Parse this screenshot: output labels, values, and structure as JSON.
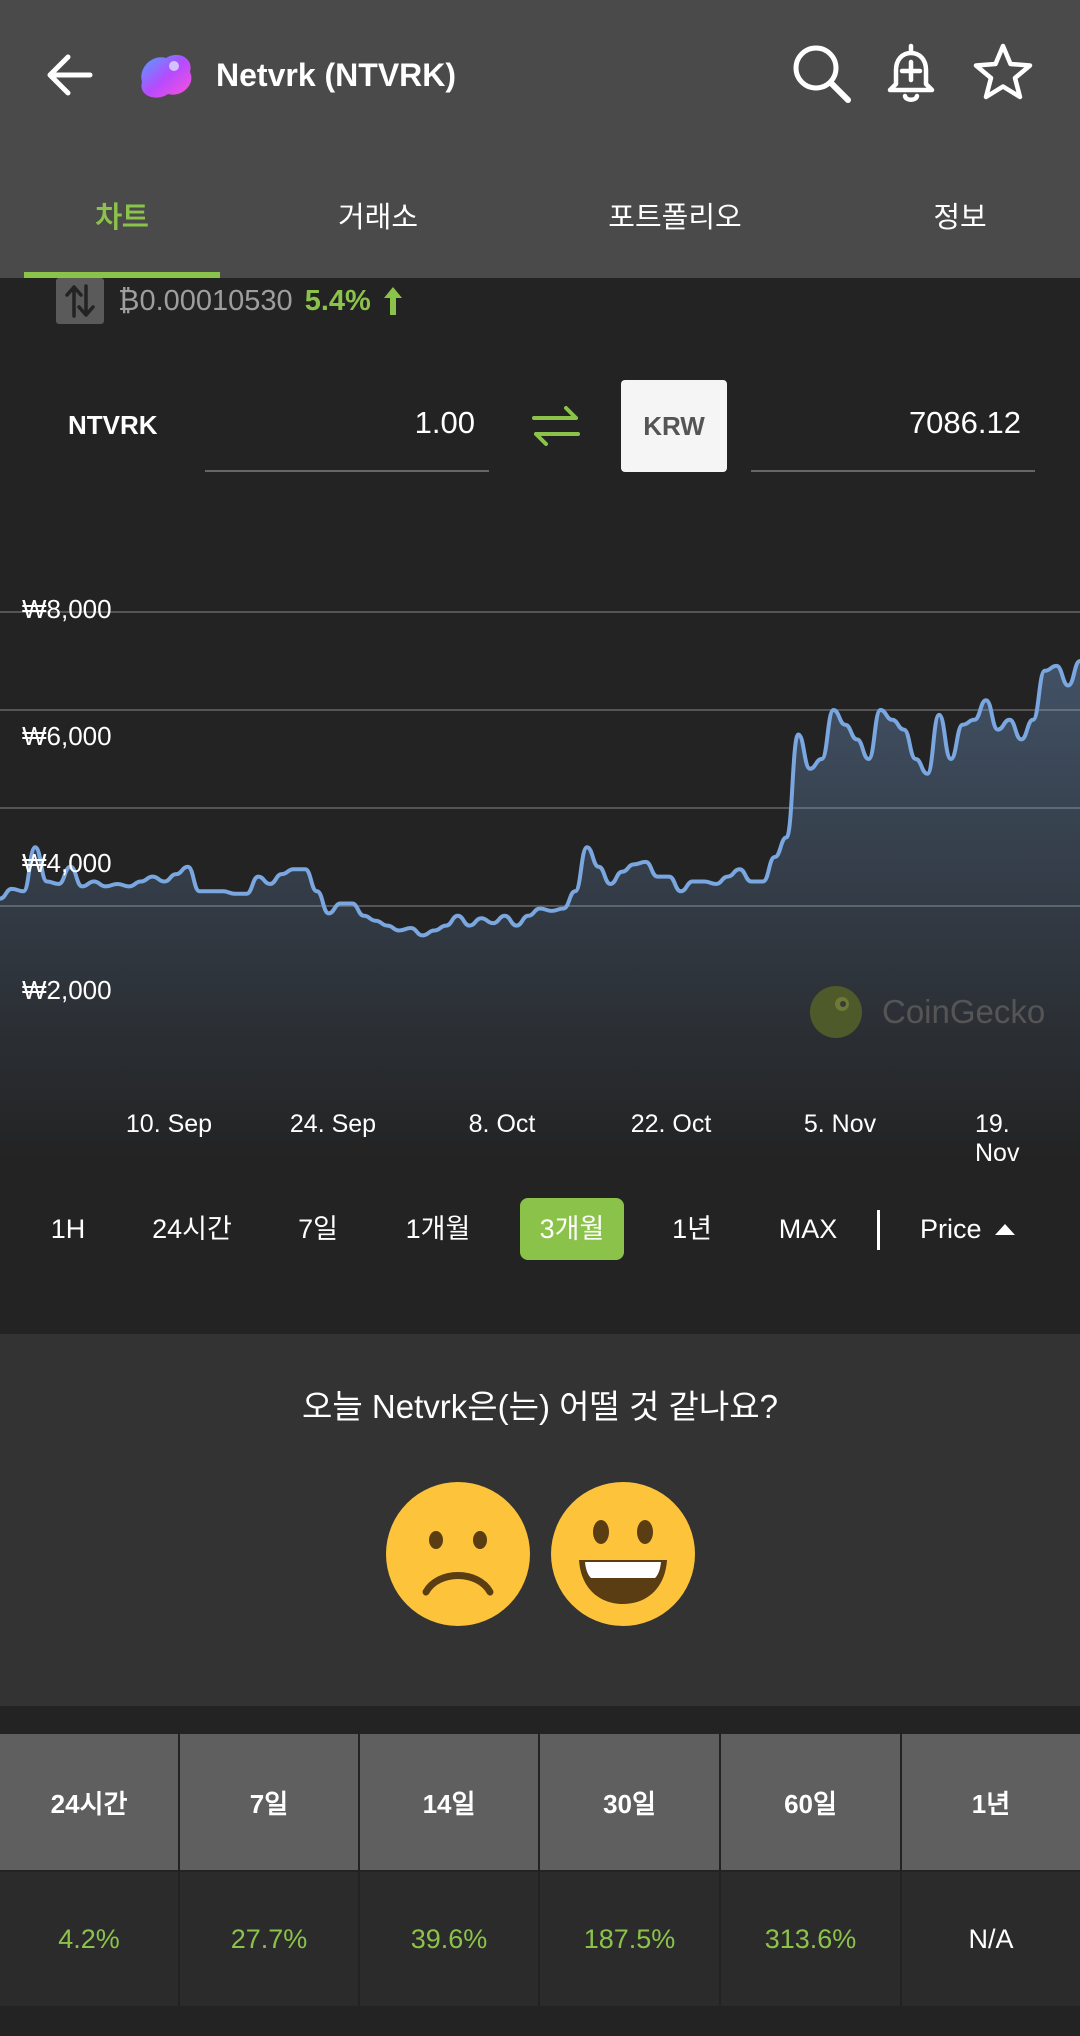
{
  "header": {
    "title": "Netvrk (NTVRK)",
    "tabs": [
      {
        "label": "차트",
        "active": true
      },
      {
        "label": "거래소"
      },
      {
        "label": "포트폴리오"
      },
      {
        "label": "정보"
      }
    ],
    "icons": [
      "back-arrow-icon",
      "search-icon",
      "add-alert-bell-icon",
      "star-icon"
    ],
    "accent_color": "#8bc34a"
  },
  "price": {
    "btc_price": "₿0.00010530",
    "change_pct": "5.4%"
  },
  "converter": {
    "from_symbol": "NTVRK",
    "from_value": "1.00",
    "to_currency": "KRW",
    "to_value": "7086.12"
  },
  "chart_data": {
    "type": "area",
    "y_ticks": [
      "₩8,000",
      "₩6,000",
      "₩4,000",
      "₩2,000"
    ],
    "ylim": [
      0,
      8000
    ],
    "x_ticks": [
      "10. Sep",
      "24. Sep",
      "8. Oct",
      "22. Oct",
      "5. Nov",
      "19. Nov"
    ],
    "watermark": "CoinGecko",
    "series": [
      {
        "values": [
          2150,
          2350,
          2300,
          3200,
          2500,
          2450,
          2800,
          2400,
          2500,
          2400,
          2450,
          2400,
          2500,
          2600,
          2500,
          2650,
          2800,
          2300,
          2300,
          2300,
          2250,
          2250,
          2600,
          2450,
          2650,
          2750,
          2750,
          2300,
          1850,
          2050,
          2050,
          1800,
          1700,
          1600,
          1500,
          1550,
          1400,
          1500,
          1600,
          1800,
          1600,
          1750,
          1650,
          1800,
          1600,
          1800,
          1950,
          1900,
          1950,
          2300,
          3200,
          2800,
          2450,
          2700,
          2850,
          2900,
          2600,
          2600,
          2300,
          2500,
          2500,
          2450,
          2600,
          2750,
          2500,
          2500,
          3000,
          3400,
          5500,
          4800,
          5000,
          6000,
          5700,
          5400,
          5000,
          6000,
          5800,
          5600,
          5000,
          4700,
          5900,
          5000,
          5700,
          5800,
          6200,
          5600,
          5800,
          5400,
          5800,
          6800,
          6900,
          6500,
          7000
        ]
      }
    ]
  },
  "ranges": {
    "items": [
      "1H",
      "24시간",
      "7일",
      "1개월",
      "3개월",
      "1년",
      "MAX"
    ],
    "active_index": 4,
    "price_selector": "Price"
  },
  "sentiment": {
    "question": "오늘 Netvrk은(는) 어떨 것 같나요?",
    "faces": [
      "sad-face-icon",
      "happy-face-icon"
    ]
  },
  "performance": {
    "headers": [
      "24시간",
      "7일",
      "14일",
      "30일",
      "60일",
      "1년"
    ],
    "values": [
      "4.2%",
      "27.7%",
      "39.6%",
      "187.5%",
      "313.6%",
      "N/A"
    ]
  }
}
